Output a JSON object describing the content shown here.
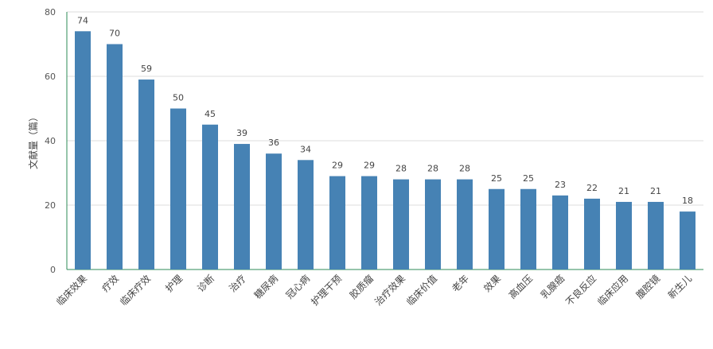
{
  "chart_data": {
    "type": "bar",
    "ylabel": "文献量（篇）",
    "ylim": [
      0,
      80
    ],
    "yticks": [
      0,
      20,
      40,
      60,
      80
    ],
    "grid": true,
    "bar_color": "#4682b4",
    "categories": [
      "临床效果",
      "疗效",
      "临床疗效",
      "护理",
      "诊断",
      "治疗",
      "糖尿病",
      "冠心病",
      "护理干预",
      "胶质瘤",
      "治疗效果",
      "临床价值",
      "老年",
      "效果",
      "高血压",
      "乳腺癌",
      "不良反应",
      "临床应用",
      "腹腔镜",
      "新生儿"
    ],
    "values": [
      74,
      70,
      59,
      50,
      45,
      39,
      36,
      34,
      29,
      29,
      28,
      28,
      28,
      25,
      25,
      23,
      22,
      21,
      21,
      18
    ]
  }
}
